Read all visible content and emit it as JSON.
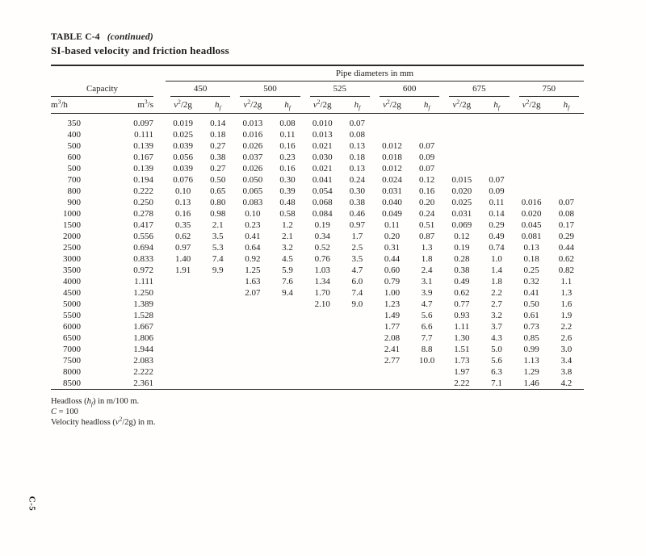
{
  "header": {
    "table_label": "TABLE C-4",
    "continued": "(continued)",
    "subtitle": "SI-based velocity and friction headloss"
  },
  "table": {
    "span_header": "Pipe diameters in mm",
    "capacity_group": "Capacity",
    "capacity_units": [
      "m^3/h",
      "m^3/s"
    ],
    "diameter_groups": [
      "450",
      "500",
      "525",
      "600",
      "675",
      "750"
    ],
    "sub_headers": [
      "*v*^2/2g",
      "*h*_f"
    ],
    "rows": [
      [
        "350",
        "0.097",
        "0.019",
        "0.14",
        "0.013",
        "0.08",
        "0.010",
        "0.07",
        "",
        "",
        "",
        "",
        "",
        ""
      ],
      [
        "400",
        "0.111",
        "0.025",
        "0.18",
        "0.016",
        "0.11",
        "0.013",
        "0.08",
        "",
        "",
        "",
        "",
        "",
        ""
      ],
      [
        "500",
        "0.139",
        "0.039",
        "0.27",
        "0.026",
        "0.16",
        "0.021",
        "0.13",
        "0.012",
        "0.07",
        "",
        "",
        "",
        ""
      ],
      [
        "600",
        "0.167",
        "0.056",
        "0.38",
        "0.037",
        "0.23",
        "0.030",
        "0.18",
        "0.018",
        "0.09",
        "",
        "",
        "",
        ""
      ],
      [
        "500",
        "0.139",
        "0.039",
        "0.27",
        "0.026",
        "0.16",
        "0.021",
        "0.13",
        "0.012",
        "0.07",
        "",
        "",
        "",
        ""
      ],
      [
        "700",
        "0.194",
        "0.076",
        "0.50",
        "0.050",
        "0.30",
        "0.041",
        "0.24",
        "0.024",
        "0.12",
        "0.015",
        "0.07",
        "",
        ""
      ],
      [
        "800",
        "0.222",
        "0.10",
        "0.65",
        "0.065",
        "0.39",
        "0.054",
        "0.30",
        "0.031",
        "0.16",
        "0.020",
        "0.09",
        "",
        ""
      ],
      [
        "900",
        "0.250",
        "0.13",
        "0.80",
        "0.083",
        "0.48",
        "0.068",
        "0.38",
        "0.040",
        "0.20",
        "0.025",
        "0.11",
        "0.016",
        "0.07"
      ],
      [
        "1000",
        "0.278",
        "0.16",
        "0.98",
        "0.10",
        "0.58",
        "0.084",
        "0.46",
        "0.049",
        "0.24",
        "0.031",
        "0.14",
        "0.020",
        "0.08"
      ],
      [
        "1500",
        "0.417",
        "0.35",
        "2.1",
        "0.23",
        "1.2",
        "0.19",
        "0.97",
        "0.11",
        "0.51",
        "0.069",
        "0.29",
        "0.045",
        "0.17"
      ],
      [
        "2000",
        "0.556",
        "0.62",
        "3.5",
        "0.41",
        "2.1",
        "0.34",
        "1.7",
        "0.20",
        "0.87",
        "0.12",
        "0.49",
        "0.081",
        "0.29"
      ],
      [
        "2500",
        "0.694",
        "0.97",
        "5.3",
        "0.64",
        "3.2",
        "0.52",
        "2.5",
        "0.31",
        "1.3",
        "0.19",
        "0.74",
        "0.13",
        "0.44"
      ],
      [
        "3000",
        "0.833",
        "1.40",
        "7.4",
        "0.92",
        "4.5",
        "0.76",
        "3.5",
        "0.44",
        "1.8",
        "0.28",
        "1.0",
        "0.18",
        "0.62"
      ],
      [
        "3500",
        "0.972",
        "1.91",
        "9.9",
        "1.25",
        "5.9",
        "1.03",
        "4.7",
        "0.60",
        "2.4",
        "0.38",
        "1.4",
        "0.25",
        "0.82"
      ],
      [
        "4000",
        "1.111",
        "",
        "",
        "1.63",
        "7.6",
        "1.34",
        "6.0",
        "0.79",
        "3.1",
        "0.49",
        "1.8",
        "0.32",
        "1.1"
      ],
      [
        "4500",
        "1.250",
        "",
        "",
        "2.07",
        "9.4",
        "1.70",
        "7.4",
        "1.00",
        "3.9",
        "0.62",
        "2.2",
        "0.41",
        "1.3"
      ],
      [
        "5000",
        "1.389",
        "",
        "",
        "",
        "",
        "2.10",
        "9.0",
        "1.23",
        "4.7",
        "0.77",
        "2.7",
        "0.50",
        "1.6"
      ],
      [
        "5500",
        "1.528",
        "",
        "",
        "",
        "",
        "",
        "",
        "1.49",
        "5.6",
        "0.93",
        "3.2",
        "0.61",
        "1.9"
      ],
      [
        "6000",
        "1.667",
        "",
        "",
        "",
        "",
        "",
        "",
        "1.77",
        "6.6",
        "1.11",
        "3.7",
        "0.73",
        "2.2"
      ],
      [
        "6500",
        "1.806",
        "",
        "",
        "",
        "",
        "",
        "",
        "2.08",
        "7.7",
        "1.30",
        "4.3",
        "0.85",
        "2.6"
      ],
      [
        "7000",
        "1.944",
        "",
        "",
        "",
        "",
        "",
        "",
        "2.41",
        "8.8",
        "1.51",
        "5.0",
        "0.99",
        "3.0"
      ],
      [
        "7500",
        "2.083",
        "",
        "",
        "",
        "",
        "",
        "",
        "2.77",
        "10.0",
        "1.73",
        "5.6",
        "1.13",
        "3.4"
      ],
      [
        "8000",
        "2.222",
        "",
        "",
        "",
        "",
        "",
        "",
        "",
        "",
        "1.97",
        "6.3",
        "1.29",
        "3.8"
      ],
      [
        "8500",
        "2.361",
        "",
        "",
        "",
        "",
        "",
        "",
        "",
        "",
        "2.22",
        "7.1",
        "1.46",
        "4.2"
      ]
    ]
  },
  "footnotes": [
    "Headloss (*h*_f) in m/100 m.",
    "*C* = 100",
    "Velocity headloss (*v*^2/2g) in m."
  ],
  "page_number": "C-5",
  "colors": {
    "text": "#1c1c1c",
    "rule": "#2a2a2a",
    "background": "#fffefd"
  }
}
